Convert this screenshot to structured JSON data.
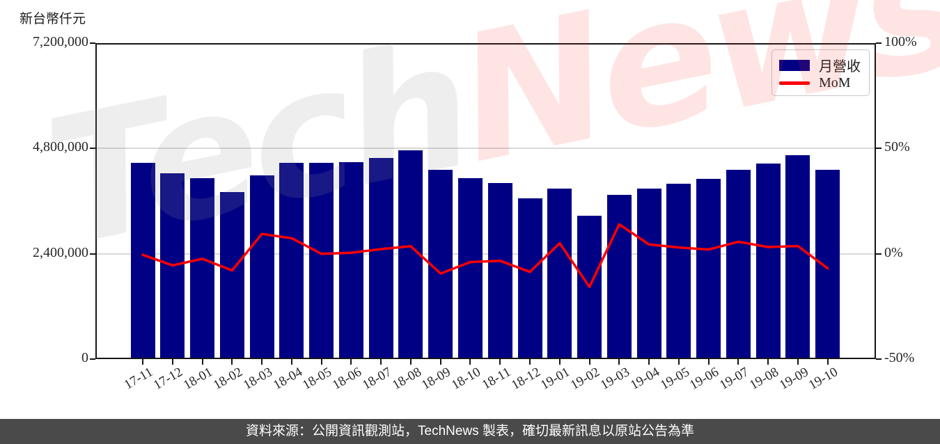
{
  "page_title": "新台幣仟元",
  "legend": {
    "items": [
      {
        "label": "月營收"
      },
      {
        "label": "MoM"
      }
    ]
  },
  "watermark": {
    "part1": "Tech",
    "part2": "News"
  },
  "footer": {
    "text": "資料來源：公開資訊觀測站，TechNews 製表，確切最新訊息以原站公告為準"
  },
  "colors": {
    "bar": "#000084",
    "line": "#fb0000",
    "grid": "#d8d8d8",
    "axis": "#151515",
    "footer_bg": "#4a4a4a",
    "footer_text": "#fdfdfd",
    "watermark_tech": "rgba(150,150,150,0.16)",
    "watermark_news": "rgba(255,45,45,0.13)"
  },
  "chart_data": {
    "type": "bar",
    "title": "新台幣仟元",
    "categories": [
      "17-11",
      "17-12",
      "18-01",
      "18-02",
      "18-03",
      "18-04",
      "18-05",
      "18-06",
      "18-07",
      "18-08",
      "18-09",
      "18-10",
      "18-11",
      "18-12",
      "19-01",
      "19-02",
      "19-03",
      "19-04",
      "19-05",
      "19-06",
      "19-07",
      "19-08",
      "19-09",
      "19-10"
    ],
    "series": [
      {
        "name": "月營收",
        "type": "bar",
        "y_axis": "left",
        "values": [
          4470000,
          4230000,
          4130000,
          3810000,
          4180000,
          4470000,
          4480000,
          4490000,
          4580000,
          4760000,
          4310000,
          4130000,
          4010000,
          3670000,
          3880000,
          3260000,
          3740000,
          3890000,
          4000000,
          4100000,
          4310000,
          4460000,
          4640000,
          4310000
        ]
      },
      {
        "name": "MoM",
        "type": "line",
        "y_axis": "right",
        "values_pct": [
          -0.5,
          -5.5,
          -2.4,
          -7.9,
          9.4,
          7.4,
          0.0,
          0.5,
          2.2,
          3.6,
          -9.4,
          -3.9,
          -3.3,
          -8.6,
          5.0,
          -15.7,
          14.0,
          4.4,
          3.0,
          2.0,
          5.7,
          3.2,
          3.7,
          -6.9
        ]
      }
    ],
    "left_axis": {
      "label": "新台幣仟元",
      "tick_values": [
        0,
        2400000,
        4800000,
        7200000
      ],
      "tick_labels": [
        "0",
        "2,400,000",
        "4,800,000",
        "7,200,000"
      ],
      "range": [
        0,
        7200000
      ],
      "gridline_values": [
        2400000,
        4800000
      ]
    },
    "right_axis": {
      "tick_values": [
        -50,
        0,
        50,
        100
      ],
      "tick_labels": [
        "-50%",
        "0%",
        "50%",
        "100%"
      ],
      "range": [
        -50,
        100
      ]
    },
    "legend_position": "top-right-inside",
    "grid": "horizontal"
  }
}
